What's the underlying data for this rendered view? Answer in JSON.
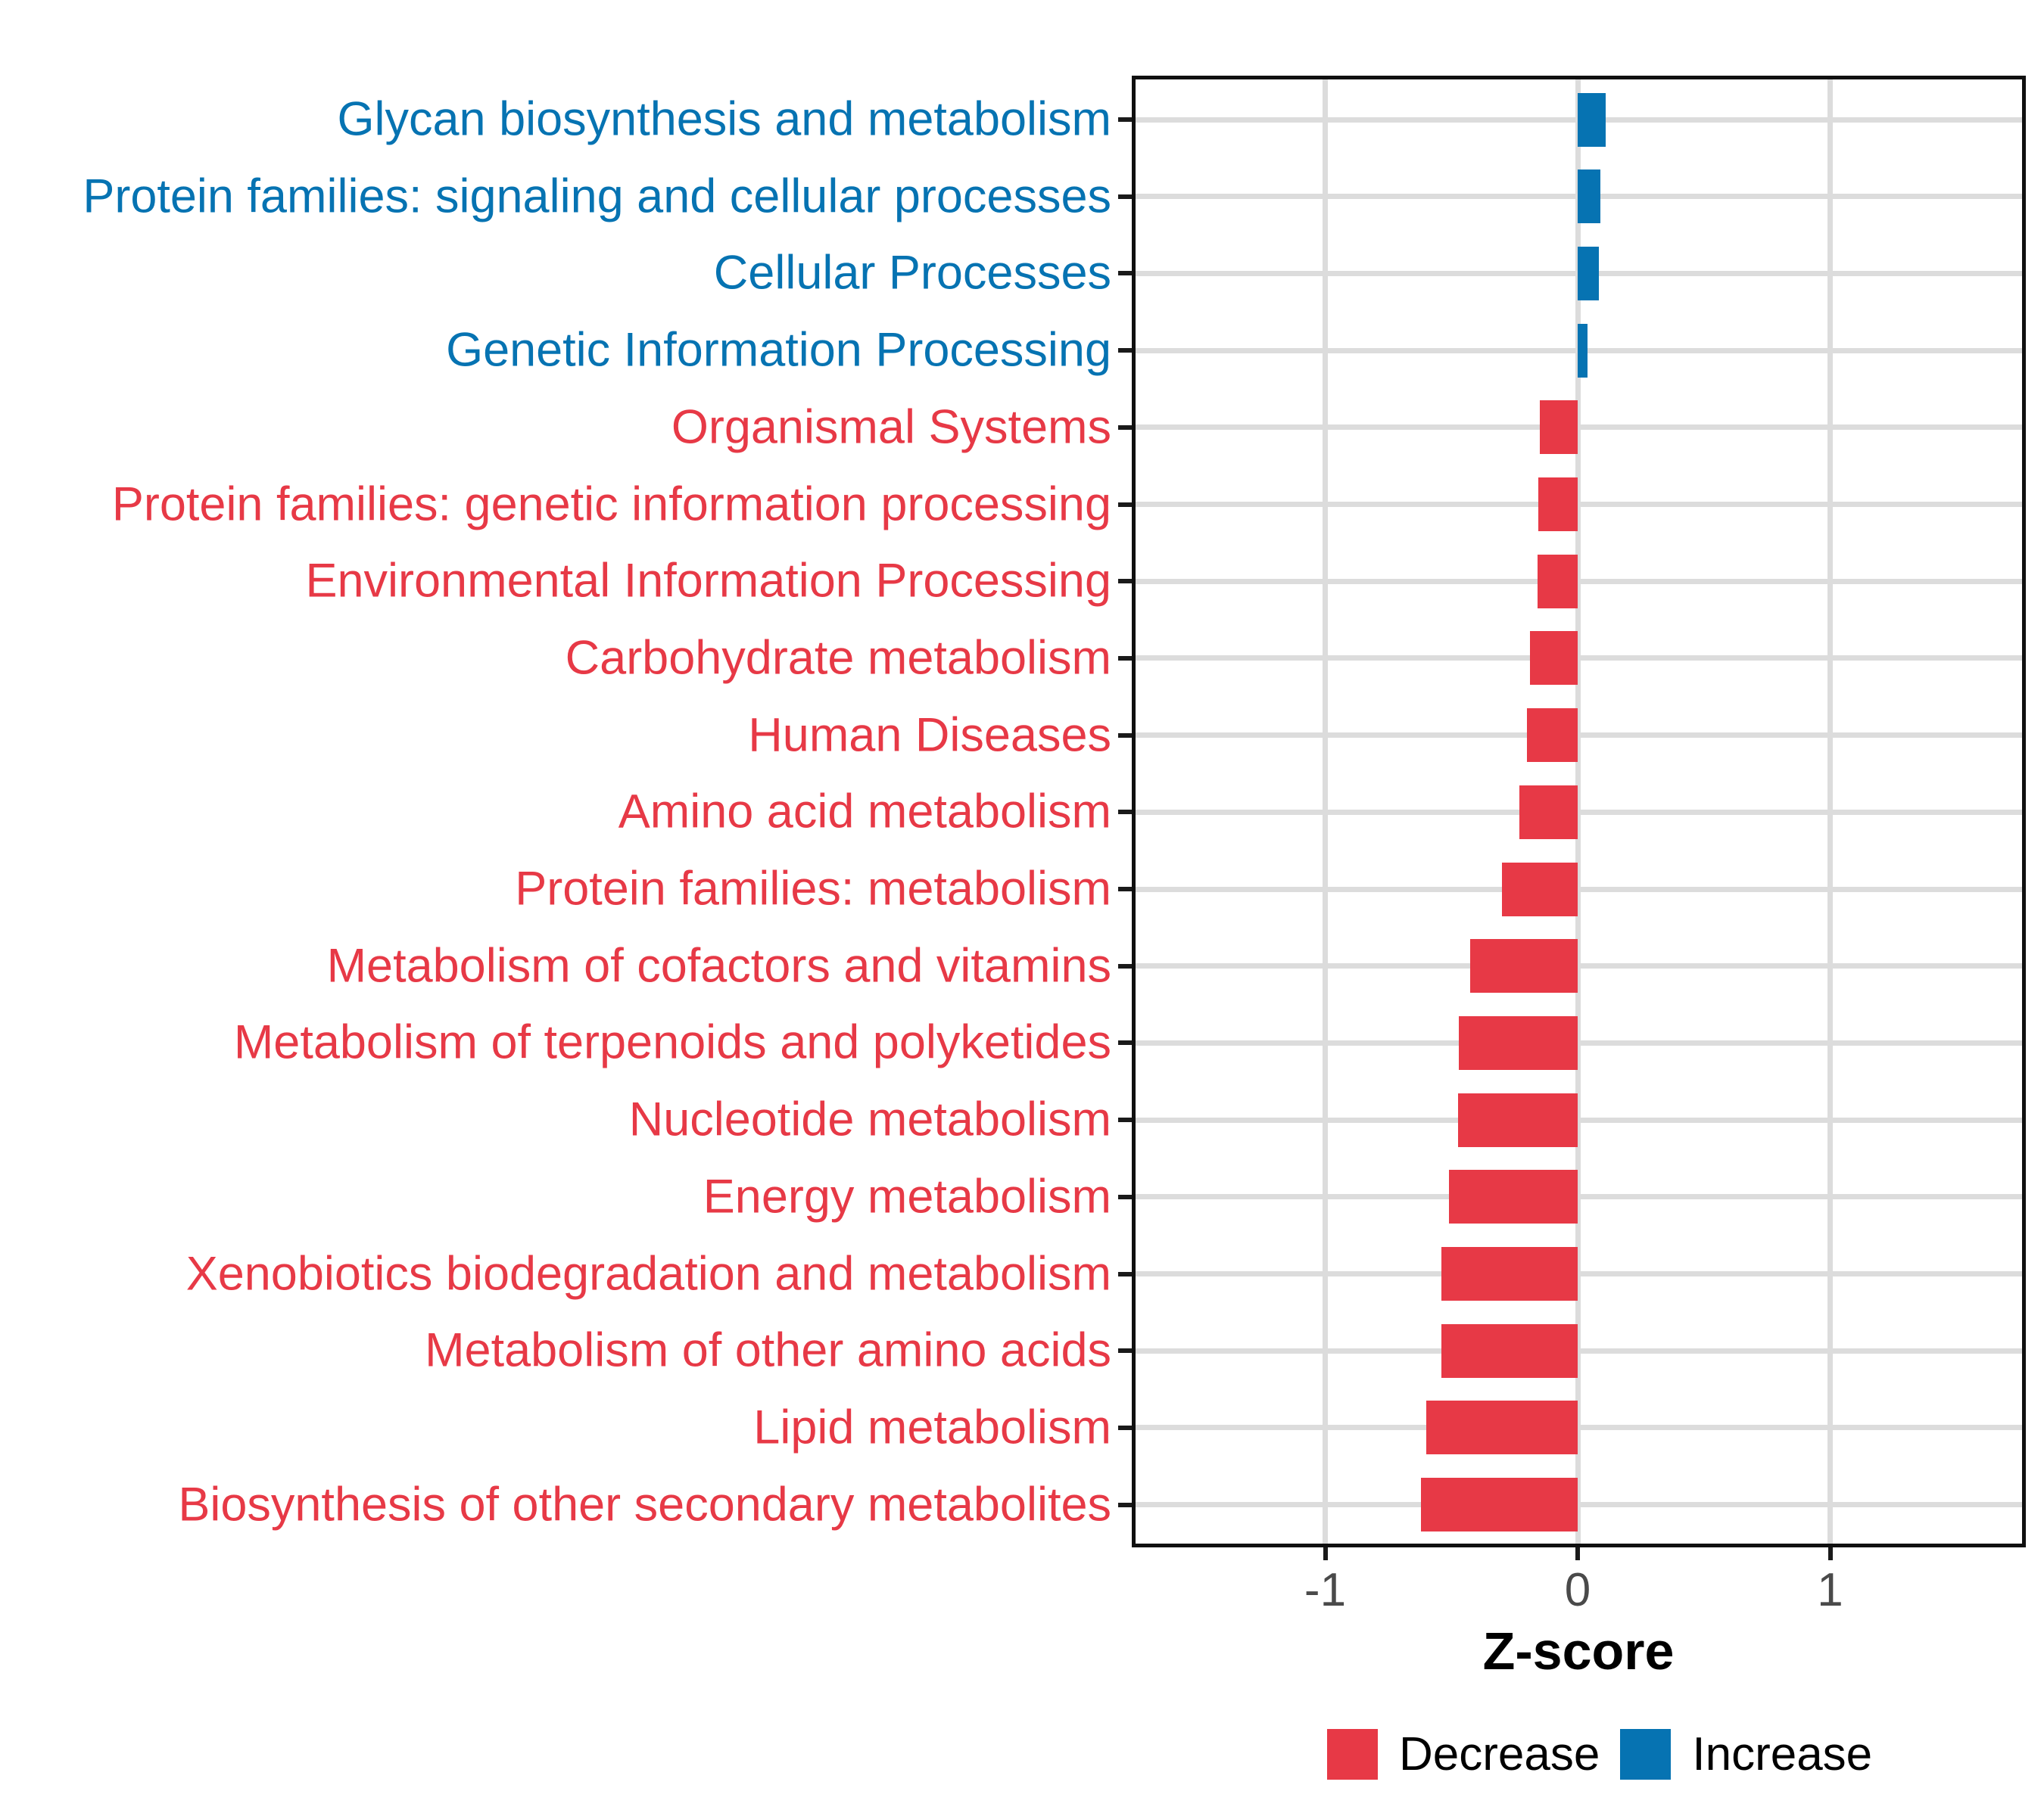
{
  "colors": {
    "decrease": "#E73946",
    "increase": "#0673B2",
    "grid": "#DCDCDC",
    "panel_border": "#101010",
    "tick_mark": "#1A1A1A",
    "tick_label": "#4A4A4A",
    "axis_title": "#000000",
    "legend_text": "#000000",
    "background": "#FFFFFF"
  },
  "axis": {
    "x_title": "Z-score",
    "x_tick_labels": [
      "-1",
      "0",
      "1"
    ]
  },
  "legend": {
    "items": [
      {
        "label": "Decrease",
        "group": "Decrease"
      },
      {
        "label": "Increase",
        "group": "Increase"
      }
    ]
  },
  "chart_data": {
    "type": "bar",
    "orientation": "horizontal",
    "title": "",
    "xlabel": "Z-score",
    "ylabel": "",
    "xlim": [
      -1.77,
      1.78
    ],
    "x_ticks": [
      -1,
      0,
      1
    ],
    "grid": "major-only",
    "legend_position": "bottom",
    "bar_width_fraction": 0.7,
    "categories": [
      "Glycan biosynthesis and metabolism",
      "Protein families: signaling and cellular processes",
      "Cellular Processes",
      "Genetic Information Processing",
      "Organismal Systems",
      "Protein families: genetic information processing",
      "Environmental Information Processing",
      "Carbohydrate metabolism",
      "Human Diseases",
      "Amino acid metabolism",
      "Protein families: metabolism",
      "Metabolism of cofactors and vitamins",
      "Metabolism of terpenoids and polyketides",
      "Nucleotide metabolism",
      "Energy metabolism",
      "Xenobiotics biodegradation and metabolism",
      "Metabolism of other amino acids",
      "Lipid metabolism",
      "Biosynthesis of other secondary metabolites"
    ],
    "series": [
      {
        "name": "Z-score",
        "values": [
          0.11,
          0.09,
          0.085,
          0.04,
          -0.15,
          -0.155,
          -0.16,
          -0.19,
          -0.2,
          -0.23,
          -0.3,
          -0.425,
          -0.47,
          -0.475,
          -0.51,
          -0.54,
          -0.54,
          -0.6,
          -0.62
        ]
      }
    ],
    "groups": [
      "Increase",
      "Increase",
      "Increase",
      "Increase",
      "Decrease",
      "Decrease",
      "Decrease",
      "Decrease",
      "Decrease",
      "Decrease",
      "Decrease",
      "Decrease",
      "Decrease",
      "Decrease",
      "Decrease",
      "Decrease",
      "Decrease",
      "Decrease",
      "Decrease"
    ]
  }
}
